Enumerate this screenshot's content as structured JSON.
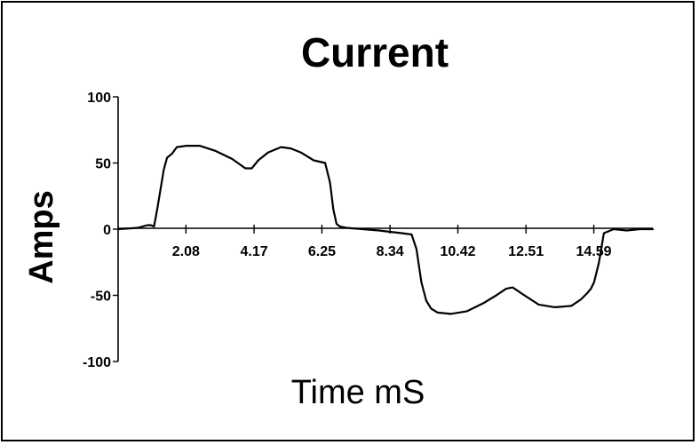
{
  "chart_data": {
    "type": "line",
    "title": "Current",
    "xlabel": "Time mS",
    "ylabel": "Amps",
    "xlim": [
      0,
      16.4
    ],
    "ylim": [
      -100,
      100
    ],
    "x_ticks": [
      2.08,
      4.17,
      6.25,
      8.34,
      10.42,
      12.51,
      14.59
    ],
    "x_tick_labels": [
      "2.08",
      "4.17",
      "6.25",
      "8.34",
      "10.42",
      "12.51",
      "14.59"
    ],
    "y_ticks": [
      100,
      50,
      0,
      -50,
      -100
    ],
    "y_tick_labels": [
      "100",
      "50",
      "0",
      "-50",
      "-100"
    ],
    "grid": false,
    "legend": "none",
    "series": [
      {
        "x": [
          0.0,
          0.6,
          0.9,
          1.0,
          1.1,
          1.2,
          1.4,
          1.5,
          1.65,
          1.8,
          2.1,
          2.5,
          3.0,
          3.5,
          3.9,
          4.1,
          4.3,
          4.6,
          5.0,
          5.3,
          5.6,
          6.0,
          6.35,
          6.5,
          6.6,
          6.7,
          6.8,
          7.0,
          7.5,
          8.0,
          8.34,
          8.7,
          9.0,
          9.15,
          9.3,
          9.45,
          9.6,
          9.8,
          10.2,
          10.7,
          11.2,
          11.6,
          11.9,
          12.1,
          12.4,
          12.9,
          13.4,
          13.9,
          14.2,
          14.4,
          14.5,
          14.6,
          14.75,
          14.9,
          15.2,
          15.6,
          16.0,
          16.4
        ],
        "y": [
          0,
          1,
          3,
          3,
          2,
          15,
          45,
          54,
          57,
          62,
          63,
          63,
          59,
          53,
          46,
          46,
          52,
          58,
          62,
          61,
          58,
          52,
          50,
          35,
          15,
          4,
          2,
          1,
          0,
          -1,
          -2,
          -3,
          -4,
          -15,
          -40,
          -54,
          -60,
          -63,
          -64,
          -62,
          -56,
          -50,
          -45,
          -44,
          -49,
          -57,
          -59,
          -58,
          -53,
          -48,
          -45,
          -40,
          -25,
          -3,
          0,
          -1,
          0,
          0
        ]
      }
    ]
  }
}
